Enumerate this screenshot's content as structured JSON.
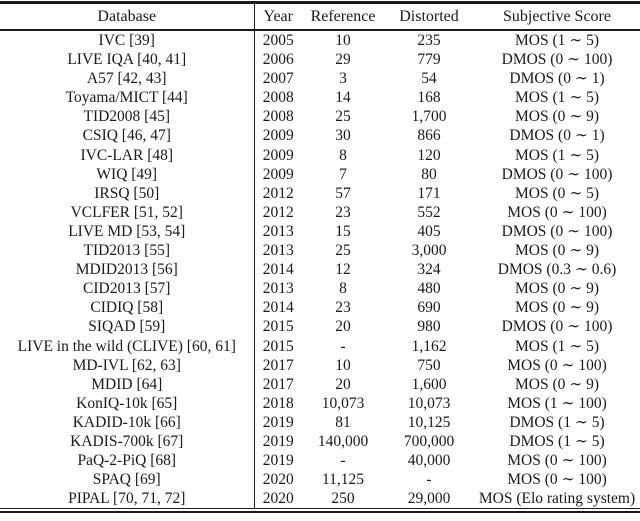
{
  "table": {
    "columns": [
      "Database",
      "Year",
      "Reference",
      "Distorted",
      "Subjective Score"
    ],
    "rows": [
      {
        "database": "IVC [39]",
        "year": "2005",
        "reference": "10",
        "distorted": "235",
        "score": "MOS (1 ∼ 5)"
      },
      {
        "database": "LIVE IQA [40, 41]",
        "year": "2006",
        "reference": "29",
        "distorted": "779",
        "score": "DMOS (0 ∼ 100)"
      },
      {
        "database": "A57 [42, 43]",
        "year": "2007",
        "reference": "3",
        "distorted": "54",
        "score": "DMOS (0 ∼ 1)"
      },
      {
        "database": "Toyama/MICT [44]",
        "year": "2008",
        "reference": "14",
        "distorted": "168",
        "score": "MOS (1 ∼ 5)"
      },
      {
        "database": "TID2008 [45]",
        "year": "2008",
        "reference": "25",
        "distorted": "1,700",
        "score": "MOS (0 ∼ 9)"
      },
      {
        "database": "CSIQ [46, 47]",
        "year": "2009",
        "reference": "30",
        "distorted": "866",
        "score": "DMOS (0 ∼ 1)"
      },
      {
        "database": "IVC-LAR [48]",
        "year": "2009",
        "reference": "8",
        "distorted": "120",
        "score": "MOS (1 ∼ 5)"
      },
      {
        "database": "WIQ [49]",
        "year": "2009",
        "reference": "7",
        "distorted": "80",
        "score": "DMOS (0 ∼ 100)"
      },
      {
        "database": "IRSQ [50]",
        "year": "2012",
        "reference": "57",
        "distorted": "171",
        "score": "MOS (0 ∼ 5)"
      },
      {
        "database": "VCLFER [51, 52]",
        "year": "2012",
        "reference": "23",
        "distorted": "552",
        "score": "MOS (0 ∼ 100)"
      },
      {
        "database": "LIVE MD [53, 54]",
        "year": "2013",
        "reference": "15",
        "distorted": "405",
        "score": "DMOS (0 ∼ 100)"
      },
      {
        "database": "TID2013 [55]",
        "year": "2013",
        "reference": "25",
        "distorted": "3,000",
        "score": "MOS (0 ∼ 9)"
      },
      {
        "database": "MDID2013 [56]",
        "year": "2014",
        "reference": "12",
        "distorted": "324",
        "score": "DMOS (0.3 ∼ 0.6)"
      },
      {
        "database": "CID2013 [57]",
        "year": "2013",
        "reference": "8",
        "distorted": "480",
        "score": "MOS (0 ∼ 9)"
      },
      {
        "database": "CIDIQ [58]",
        "year": "2014",
        "reference": "23",
        "distorted": "690",
        "score": "MOS (0 ∼ 9)"
      },
      {
        "database": "SIQAD [59]",
        "year": "2015",
        "reference": "20",
        "distorted": "980",
        "score": "DMOS (0 ∼ 100)"
      },
      {
        "database": "LIVE in the wild (CLIVE) [60, 61]",
        "year": "2015",
        "reference": "-",
        "distorted": "1,162",
        "score": "MOS (1 ∼ 5)"
      },
      {
        "database": "MD-IVL [62, 63]",
        "year": "2017",
        "reference": "10",
        "distorted": "750",
        "score": "MOS (0 ∼ 100)"
      },
      {
        "database": "MDID [64]",
        "year": "2017",
        "reference": "20",
        "distorted": "1,600",
        "score": "MOS (0 ∼ 9)"
      },
      {
        "database": "KonIQ-10k [65]",
        "year": "2018",
        "reference": "10,073",
        "distorted": "10,073",
        "score": "MOS (1 ∼ 100)"
      },
      {
        "database": "KADID-10k [66]",
        "year": "2019",
        "reference": "81",
        "distorted": "10,125",
        "score": "DMOS (1 ∼ 5)"
      },
      {
        "database": "KADIS-700k [67]",
        "year": "2019",
        "reference": "140,000",
        "distorted": "700,000",
        "score": "DMOS (1 ∼ 5)"
      },
      {
        "database": "PaQ-2-PiQ [68]",
        "year": "2019",
        "reference": "-",
        "distorted": "40,000",
        "score": "MOS (0 ∼ 100)"
      },
      {
        "database": "SPAQ [69]",
        "year": "2020",
        "reference": "11,125",
        "distorted": "-",
        "score": "MOS (0 ∼ 100)"
      },
      {
        "database": "PIPAL [70, 71, 72]",
        "year": "2020",
        "reference": "250",
        "distorted": "29,000",
        "score": "MOS (Elo rating system)"
      }
    ]
  },
  "colors": {
    "text": "#1a1a1a",
    "rule": "#1a1a1a",
    "background": "#ffffff"
  }
}
